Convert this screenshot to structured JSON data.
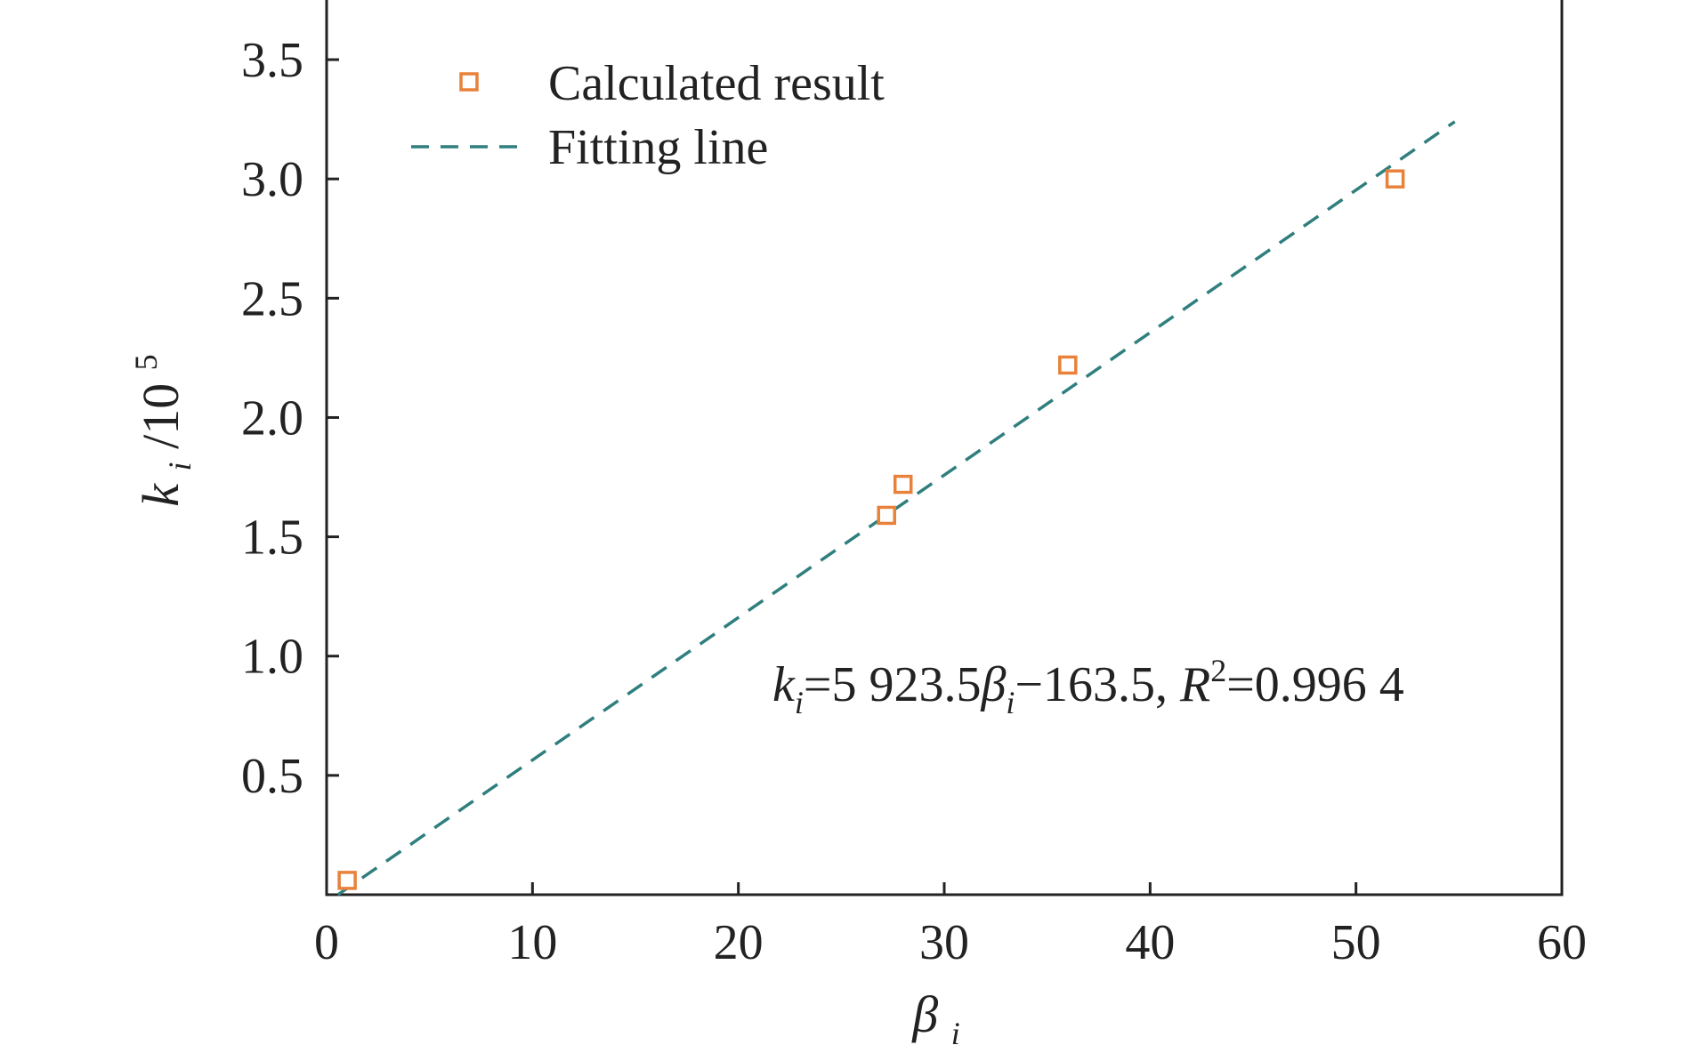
{
  "chart_data": {
    "type": "scatter",
    "xlabel": {
      "main": "β",
      "sub": "i"
    },
    "ylabel": {
      "main": "k",
      "sub": "i",
      "tail": "/10",
      "sup": "5"
    },
    "xlim": [
      0,
      60
    ],
    "ylim": [
      0,
      3.75
    ],
    "x_ticks": [
      0,
      10,
      20,
      30,
      40,
      50,
      60
    ],
    "x_tick_labels": [
      "0",
      "10",
      "20",
      "30",
      "40",
      "50",
      "60"
    ],
    "y_ticks": [
      0.5,
      1.0,
      1.5,
      2.0,
      2.5,
      3.0,
      3.5
    ],
    "y_tick_labels": [
      "0.5",
      "1.0",
      "1.5",
      "2.0",
      "2.5",
      "3.0",
      "3.5"
    ],
    "grid": false,
    "legend_position": "top-left",
    "series": [
      {
        "name": "Calculated result",
        "kind": "scatter",
        "marker": "open-square",
        "color": "#E8823A",
        "points": [
          {
            "x": 1.0,
            "y": 0.06
          },
          {
            "x": 27.2,
            "y": 1.59
          },
          {
            "x": 28.0,
            "y": 1.72
          },
          {
            "x": 36.0,
            "y": 2.22
          },
          {
            "x": 51.9,
            "y": 3.0
          }
        ]
      },
      {
        "name": "Fitting line",
        "kind": "line",
        "style": "dashed",
        "color": "#2F7F7E",
        "points": [
          {
            "x": 0.55,
            "y": 0.0
          },
          {
            "x": 54.8,
            "y": 3.24
          }
        ]
      }
    ],
    "annotation": {
      "parts": [
        {
          "t": "k",
          "italic": true
        },
        {
          "t": "i",
          "sub": true,
          "italic": true
        },
        {
          "t": "=5 923.5"
        },
        {
          "t": "β",
          "italic": true
        },
        {
          "t": "i",
          "sub": true,
          "italic": true
        },
        {
          "t": "−163.5, "
        },
        {
          "t": "R",
          "italic": true
        },
        {
          "t": "2",
          "sup": true
        },
        {
          "t": "=0.996 4"
        }
      ]
    }
  }
}
